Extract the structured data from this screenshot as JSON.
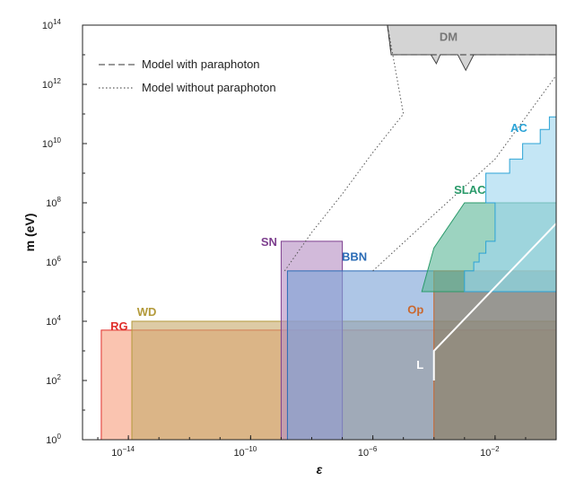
{
  "chart_data": {
    "type": "area",
    "xlabel": "ε",
    "ylabel": "m (eV)",
    "x_scale": "log",
    "y_scale": "log",
    "xlim": [
      3.16e-16,
      1
    ],
    "ylim": [
      1,
      100000000000000.0
    ],
    "grid": false,
    "x_ticks": [
      {
        "value": 1e-14,
        "label": "10",
        "exp": "−14"
      },
      {
        "value": 1e-10,
        "label": "10",
        "exp": "−10"
      },
      {
        "value": 1e-06,
        "label": "10",
        "exp": "−6"
      },
      {
        "value": 0.01,
        "label": "10",
        "exp": "−2"
      }
    ],
    "y_ticks": [
      {
        "value": 1,
        "label": "10",
        "exp": "0"
      },
      {
        "value": 100.0,
        "label": "10",
        "exp": "2"
      },
      {
        "value": 10000.0,
        "label": "10",
        "exp": "4"
      },
      {
        "value": 1000000.0,
        "label": "10",
        "exp": "6"
      },
      {
        "value": 100000000.0,
        "label": "10",
        "exp": "8"
      },
      {
        "value": 10000000000.0,
        "label": "10",
        "exp": "10"
      },
      {
        "value": 1000000000000.0,
        "label": "10",
        "exp": "12"
      },
      {
        "value": 100000000000000.0,
        "label": "10",
        "exp": "14"
      }
    ],
    "legend": {
      "position": "top-left",
      "entries": [
        {
          "label": "Model with paraphoton",
          "style": "dashed"
        },
        {
          "label": "Model without paraphoton",
          "style": "dotted"
        }
      ]
    },
    "regions": [
      {
        "name": "RG",
        "fill": "#f7a07f",
        "stroke": "#e0302c",
        "polygon": [
          [
            1.3e-15,
            1
          ],
          [
            1.3e-15,
            5000
          ],
          [
            1,
            5000
          ],
          [
            1,
            1
          ]
        ],
        "label_at": [
          5e-15,
          5000
        ]
      },
      {
        "name": "WD",
        "fill": "#c8ab6e",
        "stroke": "#b39a3a",
        "polygon": [
          [
            1.3e-14,
            1
          ],
          [
            1.3e-14,
            10000
          ],
          [
            1,
            10000
          ],
          [
            1,
            1
          ]
        ],
        "label_at": [
          4e-14,
          15000
        ]
      },
      {
        "name": "SN",
        "fill": "#b78fc4",
        "stroke": "#7d3f8e",
        "polygon": [
          [
            1e-09,
            1
          ],
          [
            1e-09,
            5000000.0
          ],
          [
            1e-07,
            5000000.0
          ],
          [
            1e-07,
            1
          ]
        ],
        "label_at": [
          4e-10,
          3500000.0
        ]
      },
      {
        "name": "BBN",
        "fill": "#7ca3d6",
        "stroke": "#2a6bb5",
        "polygon": [
          [
            1.6e-09,
            1
          ],
          [
            1.6e-09,
            500000.0
          ],
          [
            1,
            500000.0
          ],
          [
            1,
            1
          ]
        ],
        "label_at": [
          2.5e-07,
          1100000.0
        ]
      },
      {
        "name": "Op",
        "fill": "#8a7a5e",
        "stroke": "#c9682f",
        "polygon": [
          [
            0.0001,
            1
          ],
          [
            0.0001,
            500000.0
          ],
          [
            1,
            500000.0
          ],
          [
            1,
            1
          ]
        ],
        "label_at": [
          2.5e-05,
          18000
        ]
      },
      {
        "name": "SLAC",
        "fill": "#5fb89a",
        "stroke": "#2a9a6a",
        "polygon": [
          [
            4e-05,
            100000.0
          ],
          [
            0.0001,
            3000000.0
          ],
          [
            0.001,
            100000000.0
          ],
          [
            1,
            100000000.0
          ],
          [
            1,
            100000.0
          ]
        ],
        "label_at": [
          0.0015,
          200000000.0
        ]
      },
      {
        "name": "AC",
        "fill": "#9fd6ef",
        "stroke": "#2ba3d6",
        "polygon": [
          [
            0.001,
            100000.0
          ],
          [
            0.001,
            500000.0
          ],
          [
            0.002,
            500000.0
          ],
          [
            0.002,
            1000000.0
          ],
          [
            0.003,
            1000000.0
          ],
          [
            0.003,
            2000000.0
          ],
          [
            0.005,
            2000000.0
          ],
          [
            0.005,
            5000000.0
          ],
          [
            0.01,
            5000000.0
          ],
          [
            0.01,
            100000000.0
          ],
          [
            0.005,
            100000000.0
          ],
          [
            0.005,
            1000000000.0
          ],
          [
            0.03,
            1000000000.0
          ],
          [
            0.03,
            3000000000.0
          ],
          [
            0.08,
            3000000000.0
          ],
          [
            0.08,
            10000000000.0
          ],
          [
            0.3,
            10000000000.0
          ],
          [
            0.3,
            30000000000.0
          ],
          [
            0.6,
            30000000000.0
          ],
          [
            0.6,
            80000000000.0
          ],
          [
            1,
            80000000000.0
          ],
          [
            1,
            100000.0
          ]
        ],
        "label_at": [
          0.06,
          25000000000.0
        ]
      },
      {
        "name": "DM",
        "fill": "#d4d4d4",
        "stroke": "#444444",
        "polygon": [
          [
            3e-06,
            100000000000000.0
          ],
          [
            1,
            100000000000000.0
          ],
          [
            1,
            10000000000000.0
          ],
          [
            0.002,
            10000000000000.0
          ],
          [
            0.0011,
            3000000000000.0
          ],
          [
            0.0006,
            10000000000000.0
          ],
          [
            0.00016,
            10000000000000.0
          ],
          [
            0.00012,
            5000000000000.0
          ],
          [
            8e-05,
            10000000000000.0
          ],
          [
            4e-06,
            10000000000000.0
          ]
        ],
        "label_at": [
          0.0003,
          30000000000000.0
        ]
      }
    ],
    "lines": [
      {
        "name": "L",
        "color": "#ffffff",
        "points": [
          [
            0.0001,
            100
          ],
          [
            0.0001,
            1000
          ],
          [
            1,
            20000000.0
          ]
        ],
        "label_at": [
          3.5e-05,
          250
        ]
      },
      {
        "name": "Model with paraphoton",
        "style": "dashed",
        "color": "#333333",
        "points": [
          [
            3e-06,
            100000000000000.0
          ],
          [
            4e-06,
            10000000000000.0
          ],
          [
            1,
            10000000000000.0
          ]
        ]
      },
      {
        "name": "Model without paraphoton (left)",
        "style": "dotted",
        "color": "#555555",
        "points": [
          [
            1.3e-09,
            500000.0
          ],
          [
            1e-08,
            10000000.0
          ],
          [
            1e-07,
            200000000.0
          ],
          [
            1e-06,
            5000000000.0
          ],
          [
            1e-05,
            100000000000.0
          ],
          [
            3e-06,
            100000000000000.0
          ]
        ]
      },
      {
        "name": "Model without paraphoton (right)",
        "style": "dotted",
        "color": "#555555",
        "points": [
          [
            1e-06,
            500000.0
          ],
          [
            0.0001,
            40000000.0
          ],
          [
            0.01,
            3000000000.0
          ],
          [
            1,
            2000000000000.0
          ]
        ]
      }
    ]
  }
}
